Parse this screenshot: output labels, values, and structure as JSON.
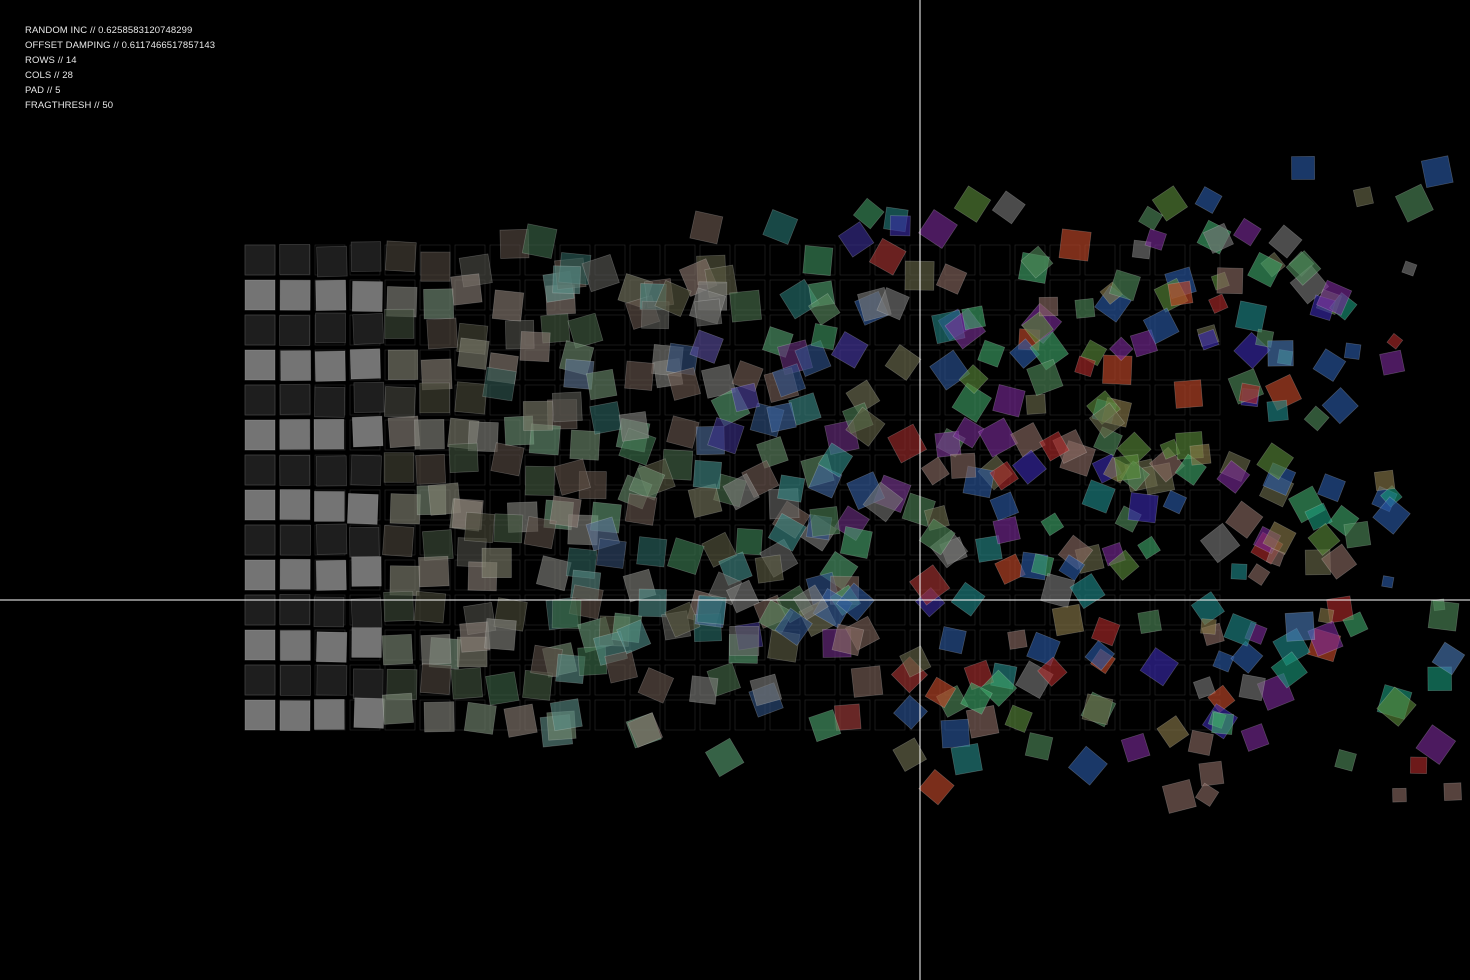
{
  "hud": {
    "random_inc": "RANDOM INC // 0.6258583120748299",
    "offset_damping": "OFFSET DAMPING // 0.6117466517857143",
    "rows": "ROWS // 14",
    "cols": "COLS // 28",
    "pad": "PAD // 5",
    "fragthresh": "FRAGTHRESH // 50"
  },
  "grid": {
    "rows": 14,
    "cols": 28,
    "pad": 5,
    "random_inc": 0.6258583120748299,
    "offset_damping": 0.6117466517857143,
    "fragthresh": 50
  },
  "crosshair": {
    "color": "#ffffff"
  },
  "colors": {
    "background": "#000000",
    "grid_outline": "#2a2a2a",
    "dark_row": "#1e1e1e",
    "light_row": "#7a7a7a",
    "palette": [
      "#7a7a7a",
      "#6b6b4a",
      "#8a6a62",
      "#4f8a5a",
      "#3fa86a",
      "#1f8a8a",
      "#2a5aa8",
      "#3a2ab0",
      "#7a2a9a",
      "#b02a2a",
      "#c84a2a",
      "#5a8a3a",
      "#8a7a4a",
      "#1a9a7a",
      "#4a7ab8"
    ]
  }
}
